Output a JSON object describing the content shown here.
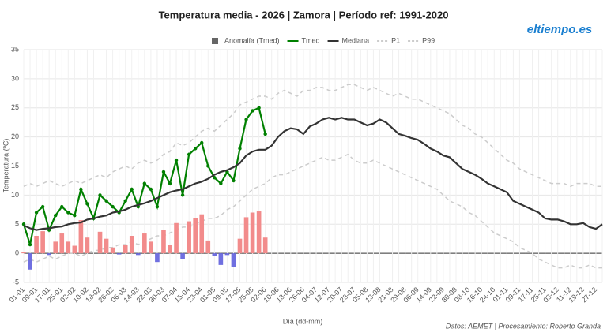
{
  "chart_data": {
    "type": "line",
    "title": "Temperatura media - 2026 | Zamora | Período ref: 1991-2020",
    "x_label": "Día (dd-mm)",
    "y_label": "Temperatura (ºC)",
    "source": "Datos: AEMET | Procesamiento: Roberto Granda",
    "logo": "eltiempo.es",
    "categories": [
      "01-01",
      null,
      "09-01",
      null,
      "17-01",
      null,
      "25-01",
      null,
      "02-02",
      null,
      "10-02",
      null,
      "18-02",
      null,
      "26-02",
      null,
      "06-03",
      null,
      "14-03",
      null,
      "22-03",
      null,
      "30-03",
      null,
      "07-04",
      null,
      "15-04",
      null,
      "23-04",
      null,
      "01-05",
      null,
      "09-05",
      null,
      "17-05",
      null,
      "25-05",
      null,
      "02-06",
      null,
      "10-06",
      null,
      "18-06",
      null,
      "26-06",
      null,
      "04-07",
      null,
      "12-07",
      null,
      "20-07",
      null,
      "28-07",
      null,
      "05-08",
      null,
      "13-08",
      null,
      "21-08",
      null,
      "29-08",
      null,
      "06-09",
      null,
      "14-09",
      null,
      "22-09",
      null,
      "30-09",
      null,
      "08-10",
      null,
      "16-10",
      null,
      "24-10",
      null,
      "01-11",
      null,
      "09-11",
      null,
      "17-11",
      null,
      "25-11",
      null,
      "03-12",
      null,
      "11-12",
      null,
      "19-12",
      null,
      "27-12",
      null
    ],
    "ylim": [
      -5,
      35
    ],
    "yticks": [
      -5,
      0,
      5,
      10,
      15,
      20,
      25,
      30,
      35
    ],
    "grid": true,
    "series": [
      {
        "name": "Anomalía (Tmed)",
        "type": "bar",
        "color": "#666666",
        "positive_color": "#f28b8b",
        "negative_color": "#6f6fe0",
        "values": [
          0.2,
          -2.8,
          3.0,
          3.8,
          -0.3,
          2.0,
          3.4,
          2.0,
          1.3,
          5.7,
          2.7,
          0,
          3.7,
          2.5,
          1.0,
          -0.2,
          1.5,
          3.0,
          -0.3,
          3.4,
          2.0,
          -1.5,
          4.0,
          1.5,
          5.2,
          -1.0,
          5.5,
          6.0,
          6.7,
          2.2,
          -0.5,
          -2.0,
          -0.3,
          -2.3,
          2.5,
          6.2,
          7.0,
          7.2,
          2.7,
          null,
          null,
          null,
          null,
          null,
          null,
          null,
          null,
          null,
          null,
          null,
          null,
          null,
          null,
          null,
          null,
          null,
          null,
          null,
          null,
          null,
          null,
          null,
          null,
          null,
          null,
          null,
          null,
          null,
          null,
          null,
          null,
          null,
          null,
          null,
          null,
          null,
          null,
          null,
          null,
          null,
          null,
          null,
          null,
          null,
          null,
          null,
          null,
          null,
          null,
          null,
          null,
          null
        ]
      },
      {
        "name": "Tmed",
        "type": "line",
        "color": "#008000",
        "markers": true,
        "values": [
          5.0,
          1.5,
          7,
          8,
          4,
          6.5,
          8,
          7,
          6.5,
          11,
          8.5,
          6,
          10,
          9,
          8,
          7,
          9,
          11,
          8,
          12,
          11,
          8,
          14,
          12,
          16,
          10,
          17,
          18,
          19,
          15,
          13,
          12,
          14,
          12.5,
          18,
          23,
          24.5,
          25,
          20.5,
          null,
          null,
          null,
          null,
          null,
          null,
          null,
          null,
          null,
          null,
          null,
          null,
          null,
          null,
          null,
          null,
          null,
          null,
          null,
          null,
          null,
          null,
          null,
          null,
          null,
          null,
          null,
          null,
          null,
          null,
          null,
          null,
          null,
          null,
          null,
          null,
          null,
          null,
          null,
          null,
          null,
          null,
          null,
          null,
          null,
          null,
          null,
          null,
          null,
          null,
          null,
          null,
          null
        ]
      },
      {
        "name": "Mediana",
        "type": "line",
        "color": "#333333",
        "values": [
          4.8,
          4.3,
          4.0,
          4.2,
          4.3,
          4.5,
          4.6,
          5.0,
          5.2,
          5.3,
          5.8,
          6.0,
          6.3,
          6.5,
          7.0,
          7.2,
          7.5,
          8.0,
          8.3,
          8.6,
          9.0,
          9.5,
          10.0,
          10.5,
          10.8,
          11.0,
          11.5,
          12.0,
          12.3,
          12.8,
          13.5,
          14.0,
          14.3,
          14.8,
          15.5,
          16.8,
          17.5,
          17.8,
          17.8,
          18.5,
          20.0,
          21.0,
          21.5,
          21.3,
          20.5,
          21.8,
          22.3,
          23.0,
          23.3,
          23.0,
          23.3,
          23.0,
          23.0,
          22.5,
          22.0,
          22.3,
          23.0,
          22.5,
          21.5,
          20.5,
          20.2,
          19.8,
          19.5,
          18.8,
          18.0,
          17.5,
          16.8,
          16.5,
          15.5,
          14.5,
          14.0,
          13.5,
          12.8,
          12.0,
          11.5,
          11.0,
          10.5,
          9.0,
          8.5,
          8.0,
          7.5,
          7.0,
          6.0,
          5.8,
          5.8,
          5.5,
          5.0,
          5.0,
          5.2,
          4.5,
          4.2,
          5.0
        ]
      },
      {
        "name": "P1",
        "type": "line",
        "color": "#cccccc",
        "dashed": true,
        "values": [
          -1.5,
          -1,
          -1.5,
          -1,
          -0.5,
          -1,
          -0.5,
          0,
          0,
          -0.5,
          0,
          0.5,
          0.5,
          1,
          1,
          1.5,
          1.5,
          2,
          1.5,
          2,
          2.5,
          3,
          3,
          3.5,
          4,
          4.5,
          4.5,
          5,
          5.5,
          6,
          6,
          6.5,
          7.5,
          8,
          9,
          10,
          11,
          11.5,
          12,
          13,
          13.5,
          13.5,
          14,
          14.5,
          15,
          15.5,
          16,
          16.5,
          16,
          16,
          16.5,
          17,
          16,
          15.5,
          15.5,
          16,
          15.5,
          15,
          14.5,
          14,
          13.5,
          13,
          12.5,
          12,
          11.5,
          11,
          10,
          9,
          8.5,
          8,
          7,
          6.5,
          5.5,
          4.5,
          3.5,
          3,
          2.5,
          2,
          1,
          0.5,
          0,
          -1,
          -1.5,
          -2,
          -2.5,
          -2.5,
          -2,
          -2.5,
          -2.5,
          -2,
          -2.5,
          -2.5
        ]
      },
      {
        "name": "P99",
        "type": "line",
        "color": "#cccccc",
        "dashed": true,
        "values": [
          11.5,
          12,
          11.5,
          12,
          12.5,
          12,
          11.5,
          12,
          12.5,
          12,
          12.5,
          13,
          13.5,
          13,
          14,
          14.5,
          15,
          14.5,
          15.5,
          16,
          15.5,
          16,
          17,
          17.5,
          19,
          18.5,
          19,
          20,
          21,
          21.5,
          21,
          22,
          23,
          24,
          25.5,
          26,
          26.5,
          27,
          27,
          26.5,
          27.5,
          28,
          27.5,
          27,
          28,
          28,
          28.5,
          28.5,
          28,
          28,
          28.5,
          29,
          29,
          28.5,
          28,
          28.5,
          28,
          27.5,
          27,
          27.5,
          27,
          26.5,
          26.5,
          26,
          25.5,
          25,
          24.5,
          24,
          23,
          22,
          21.5,
          20.5,
          20,
          19,
          18,
          17,
          16,
          15.5,
          14.5,
          14,
          13.5,
          13,
          12.5,
          12,
          12,
          12,
          11.5,
          12,
          12,
          12,
          11.5,
          11.5
        ]
      }
    ]
  }
}
